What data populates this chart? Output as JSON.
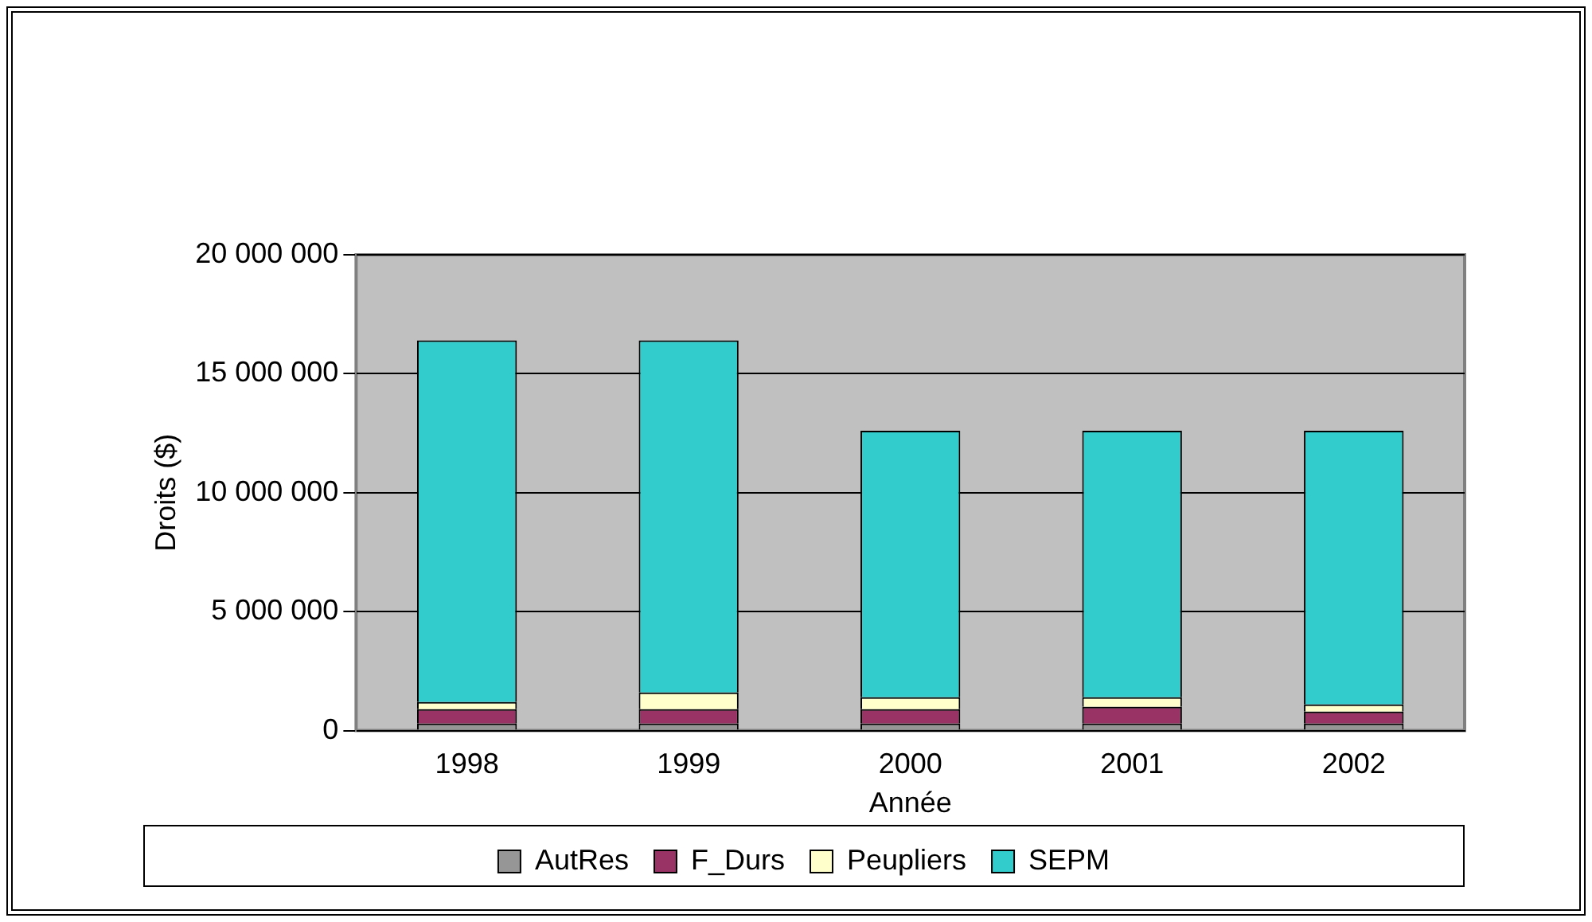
{
  "chart_data": {
    "type": "bar",
    "stacked": true,
    "xlabel": "Année",
    "ylabel": "Droits ($)",
    "categories": [
      "1998",
      "1999",
      "2000",
      "2001",
      "2002"
    ],
    "series": [
      {
        "name": "AutRes",
        "color": "#969696",
        "values": [
          300000,
          300000,
          300000,
          300000,
          300000
        ]
      },
      {
        "name": "F_Durs",
        "color": "#993366",
        "values": [
          600000,
          600000,
          600000,
          700000,
          500000
        ]
      },
      {
        "name": "Peupliers",
        "color": "#ffffcc",
        "values": [
          300000,
          700000,
          500000,
          400000,
          300000
        ]
      },
      {
        "name": "SEPM",
        "color": "#33cccc",
        "values": [
          15200000,
          14800000,
          11200000,
          11200000,
          11500000
        ]
      }
    ],
    "ylim": [
      0,
      20000000
    ],
    "yticks": [
      {
        "value": 0,
        "label": "0"
      },
      {
        "value": 5000000,
        "label": "5 000 000"
      },
      {
        "value": 10000000,
        "label": "10 000 000"
      },
      {
        "value": 15000000,
        "label": "15 000 000"
      },
      {
        "value": 20000000,
        "label": "20 000 000"
      }
    ],
    "grid": "y",
    "legend": "bottom"
  }
}
